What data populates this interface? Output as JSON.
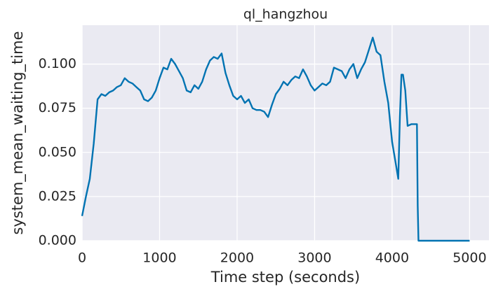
{
  "chart_data": {
    "type": "line",
    "title": "ql_hangzhou",
    "x_label": "Time step (seconds)",
    "y_label": "system_mean_waiting_time",
    "x": [
      0,
      50,
      100,
      150,
      200,
      250,
      300,
      350,
      400,
      450,
      500,
      550,
      600,
      650,
      700,
      750,
      800,
      850,
      900,
      950,
      1000,
      1050,
      1100,
      1150,
      1200,
      1250,
      1300,
      1350,
      1400,
      1450,
      1500,
      1550,
      1600,
      1650,
      1700,
      1750,
      1800,
      1850,
      1900,
      1950,
      2000,
      2050,
      2100,
      2150,
      2200,
      2250,
      2300,
      2350,
      2400,
      2450,
      2500,
      2550,
      2600,
      2650,
      2700,
      2750,
      2800,
      2850,
      2900,
      2950,
      3000,
      3050,
      3100,
      3150,
      3200,
      3250,
      3300,
      3350,
      3400,
      3450,
      3500,
      3550,
      3600,
      3650,
      3700,
      3750,
      3800,
      3850,
      3900,
      3950,
      4000,
      4050,
      4080,
      4100,
      4120,
      4140,
      4170,
      4200,
      4250,
      4300,
      4320,
      4330,
      4340,
      5000
    ],
    "series": [
      {
        "name": "system_mean_waiting_time",
        "color": "#0173b2",
        "values": [
          0.014,
          0.025,
          0.035,
          0.055,
          0.08,
          0.083,
          0.082,
          0.084,
          0.085,
          0.087,
          0.088,
          0.092,
          0.09,
          0.089,
          0.087,
          0.085,
          0.08,
          0.079,
          0.081,
          0.085,
          0.092,
          0.098,
          0.097,
          0.103,
          0.1,
          0.096,
          0.092,
          0.085,
          0.084,
          0.088,
          0.086,
          0.09,
          0.097,
          0.102,
          0.104,
          0.103,
          0.106,
          0.095,
          0.088,
          0.082,
          0.08,
          0.082,
          0.078,
          0.08,
          0.075,
          0.074,
          0.074,
          0.073,
          0.07,
          0.077,
          0.083,
          0.086,
          0.09,
          0.088,
          0.091,
          0.093,
          0.092,
          0.097,
          0.093,
          0.088,
          0.085,
          0.087,
          0.089,
          0.088,
          0.09,
          0.098,
          0.097,
          0.096,
          0.092,
          0.097,
          0.1,
          0.092,
          0.097,
          0.101,
          0.108,
          0.115,
          0.107,
          0.105,
          0.09,
          0.078,
          0.056,
          0.043,
          0.035,
          0.07,
          0.094,
          0.094,
          0.085,
          0.065,
          0.066,
          0.066,
          0.066,
          0.02,
          0,
          0
        ]
      }
    ],
    "xlim": [
      0,
      5250
    ],
    "ylim": [
      0,
      0.122
    ],
    "xticks": [
      0,
      1000,
      2000,
      3000,
      4000,
      5000
    ],
    "yticks": [
      {
        "value": 0,
        "label": "0.000"
      },
      {
        "value": 0.025,
        "label": "0.025"
      },
      {
        "value": 0.05,
        "label": "0.050"
      },
      {
        "value": 0.075,
        "label": "0.075"
      },
      {
        "value": 0.1,
        "label": "0.100"
      }
    ],
    "grid": true
  }
}
